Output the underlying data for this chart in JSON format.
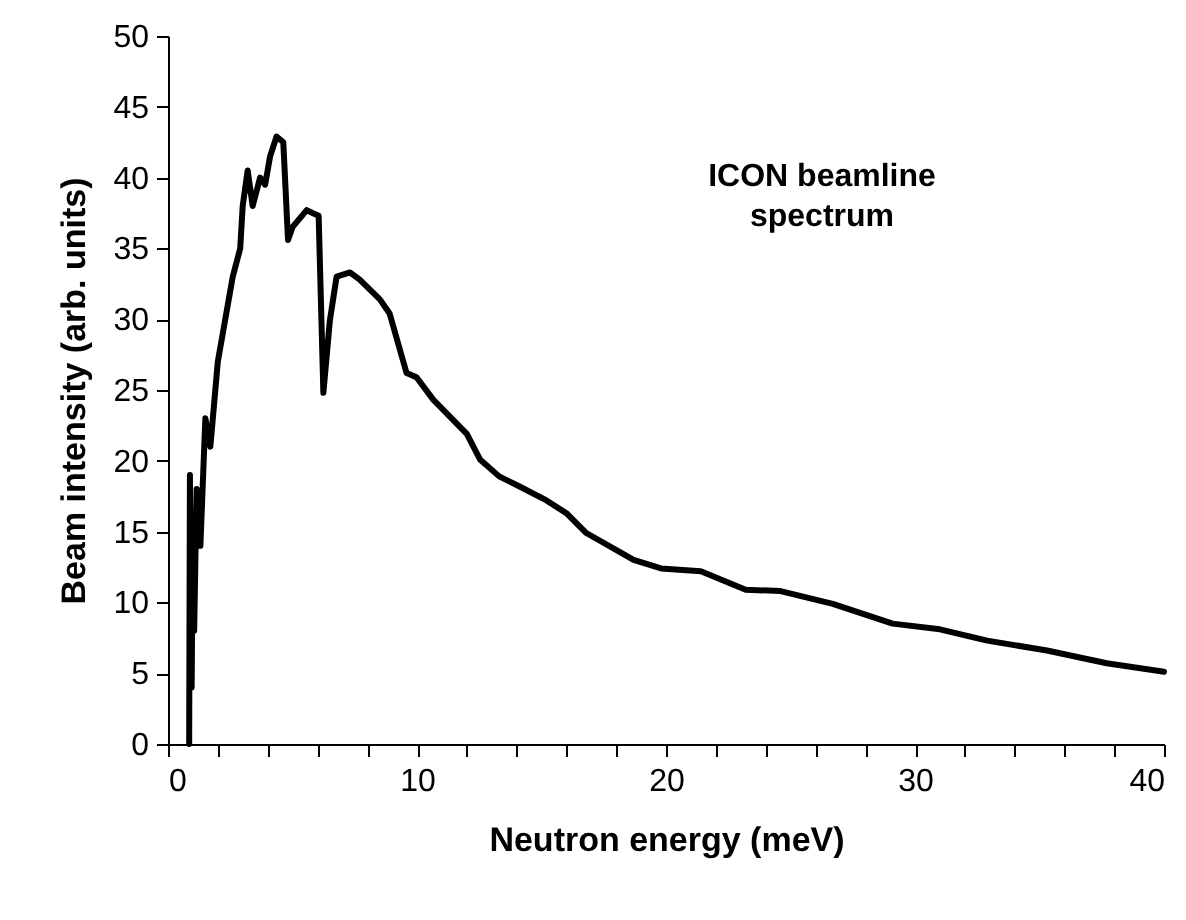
{
  "chart_data": {
    "type": "line",
    "xlabel": "Neutron energy (meV)",
    "ylabel": "Beam intensity (arb. units)",
    "annotations": [
      "ICON beamline\nspectrum"
    ],
    "x": [
      0.85,
      0.88,
      0.95,
      1.0,
      1.05,
      1.15,
      1.3,
      1.5,
      1.7,
      2.0,
      2.3,
      2.6,
      2.9,
      3.0,
      3.2,
      3.4,
      3.7,
      3.9,
      4.1,
      4.36,
      4.63,
      4.82,
      5.0,
      5.57,
      5.8,
      6.05,
      6.24,
      6.5,
      6.77,
      7.31,
      7.7,
      8.51,
      8.9,
      9.58,
      9.98,
      10.66,
      12.0,
      12.53,
      13.3,
      14.1,
      15.2,
      16.0,
      16.8,
      18.7,
      19.8,
      21.4,
      23.2,
      24.6,
      26.7,
      29.1,
      31.0,
      32.9,
      35.3,
      37.7,
      40
    ],
    "series": [
      {
        "color": "#000000",
        "values": [
          0,
          19,
          4,
          16,
          8,
          18,
          14,
          23,
          21,
          27,
          30,
          33,
          35,
          38,
          40.5,
          38,
          40,
          39.5,
          41.5,
          42.9,
          42.5,
          35.6,
          36.5,
          37.7,
          37.5,
          37.3,
          24.8,
          29.9,
          33,
          33.3,
          32.8,
          31.4,
          30.4,
          26.2,
          25.9,
          24.3,
          21.9,
          20.1,
          18.9,
          18.2,
          17.2,
          16.3,
          14.9,
          13,
          12.4,
          12.2,
          10.9,
          10.8,
          9.9,
          8.5,
          8.1,
          7.3,
          6.6,
          5.7,
          5.1
        ]
      }
    ],
    "xlim": [
      0,
      40
    ],
    "ylim": [
      0,
      50
    ],
    "xticks": [
      0,
      {
        "value": 2,
        "label": null
      },
      {
        "value": 4,
        "label": null
      },
      {
        "value": 6,
        "label": null
      },
      {
        "value": 8,
        "label": null
      },
      10,
      {
        "value": 12,
        "label": null
      },
      {
        "value": 14,
        "label": null
      },
      {
        "value": 16,
        "label": null
      },
      {
        "value": 18,
        "label": null
      },
      20,
      {
        "value": 22,
        "label": null
      },
      {
        "value": 24,
        "label": null
      },
      {
        "value": 26,
        "label": null
      },
      {
        "value": 28,
        "label": null
      },
      30,
      {
        "value": 32,
        "label": null
      },
      {
        "value": 34,
        "label": null
      },
      {
        "value": 36,
        "label": null
      },
      {
        "value": 38,
        "label": null
      },
      40
    ],
    "yticks": [
      0,
      5,
      10,
      15,
      20,
      25,
      30,
      35,
      40,
      45,
      50
    ],
    "grid": false,
    "marker": "none",
    "line_style": "solid"
  }
}
